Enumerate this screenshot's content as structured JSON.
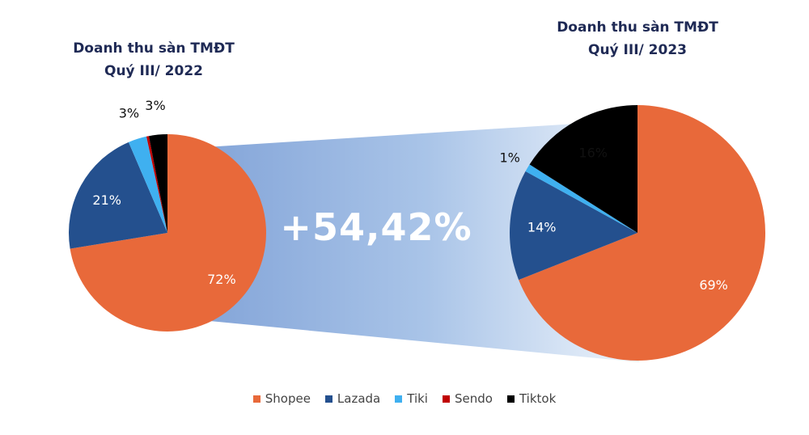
{
  "chart_data": [
    {
      "type": "pie",
      "title": [
        "Doanh thu sàn TMĐT",
        "Quý III/ 2022"
      ],
      "slices": [
        {
          "name": "Shopee",
          "value": 72,
          "label": "72%"
        },
        {
          "name": "Lazada",
          "value": 21,
          "label": "21%"
        },
        {
          "name": "Tiki",
          "value": 3,
          "label": "3%"
        },
        {
          "name": "Sendo",
          "value": 0.4,
          "label": ""
        },
        {
          "name": "Tiktok",
          "value": 3,
          "label": "3%"
        }
      ]
    },
    {
      "type": "pie",
      "title": [
        "Doanh thu sàn TMĐT",
        "Quý III/ 2023"
      ],
      "slices": [
        {
          "name": "Shopee",
          "value": 69,
          "label": "69%"
        },
        {
          "name": "Lazada",
          "value": 14,
          "label": "14%"
        },
        {
          "name": "Tiki",
          "value": 1,
          "label": "1%"
        },
        {
          "name": "Sendo",
          "value": 0,
          "label": ""
        },
        {
          "name": "Tiktok",
          "value": 16,
          "label": "16%"
        }
      ]
    }
  ],
  "growth_label": "+54,42%",
  "legend": [
    {
      "name": "Shopee",
      "color": "#e8693a"
    },
    {
      "name": "Lazada",
      "color": "#24508e"
    },
    {
      "name": "Tiki",
      "color": "#3fb0f0"
    },
    {
      "name": "Sendo",
      "color": "#c00000"
    },
    {
      "name": "Tiktok",
      "color": "#000000"
    }
  ],
  "label_colors": {
    "Shopee": "#ffffff",
    "Lazada": "#ffffff",
    "Tiki": "#111111",
    "Sendo": "#111111",
    "Tiktok": "#111111"
  }
}
